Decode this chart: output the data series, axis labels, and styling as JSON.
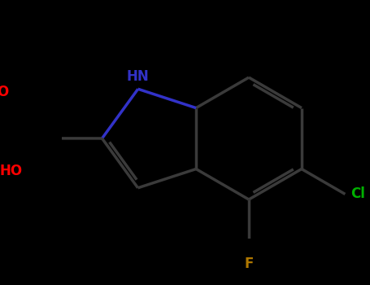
{
  "background_color": "#000000",
  "bond_color": "#3a3a3a",
  "NH_color": "#3232c8",
  "OH_color": "#ff0000",
  "O_color": "#ff0000",
  "Cl_color": "#00b000",
  "F_color": "#b07800",
  "label_NH": "HN",
  "label_HO": "HO",
  "label_O": "O",
  "label_Cl": "Cl",
  "label_F": "F",
  "figsize": [
    4.55,
    3.5
  ],
  "dpi": 100,
  "lw": 2.5
}
